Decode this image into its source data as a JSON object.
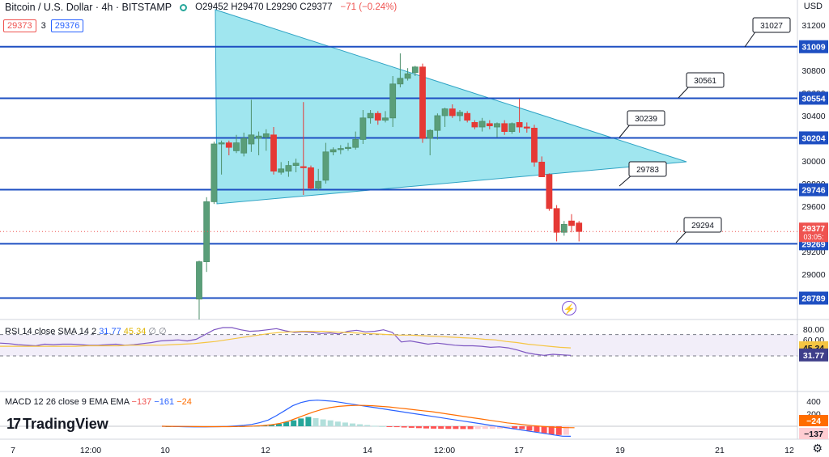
{
  "header": {
    "title": "Bitcoin / U.S. Dollar · 4h · BITSTAMP",
    "ohlc": "O29452 H29470 L29290 C29377",
    "change": "−71 (−0.24%)"
  },
  "quote": {
    "bid": "29373",
    "spread": "3",
    "ask": "29376"
  },
  "axis_unit": "USD",
  "logo_text": "TradingView",
  "countdown": "03:05:",
  "rsi_label": {
    "name": "RSI 14 close SMA 14 2",
    "v1": "31.77",
    "v2": "45.34",
    "v3": "∅ ∅"
  },
  "macd_label": {
    "name": "MACD 12 26 close 9 EMA EMA",
    "v1": "−137",
    "v2": "−161",
    "v3": "−24"
  },
  "colors": {
    "up": "#4e8f6b",
    "down": "#e53935",
    "level": "#1e4fc2",
    "triangle": "#80deea",
    "triangle_edge": "#2fa3c4"
  },
  "chart_data": [
    {
      "type": "candlestick",
      "x_tick_labels": [
        "7",
        "12:00",
        "10",
        "12",
        "12:00",
        "14",
        "12:00",
        "17",
        "19",
        "21",
        "12"
      ],
      "y_tick_labels": [
        "31200",
        "31000",
        "30800",
        "30600",
        "30400",
        "30200",
        "30000",
        "29800",
        "29600",
        "29400",
        "29200",
        "29000",
        "28800"
      ],
      "candles": [
        {
          "o": 28780,
          "h": 29120,
          "l": 28600,
          "c": 29110
        },
        {
          "o": 29110,
          "h": 29680,
          "l": 29020,
          "c": 29640
        },
        {
          "o": 29640,
          "h": 30170,
          "l": 29620,
          "c": 30150
        },
        {
          "o": 30150,
          "h": 30180,
          "l": 29880,
          "c": 30160
        },
        {
          "o": 30160,
          "h": 30180,
          "l": 30050,
          "c": 30120
        },
        {
          "o": 30090,
          "h": 30230,
          "l": 30070,
          "c": 30160
        },
        {
          "o": 30070,
          "h": 30250,
          "l": 30040,
          "c": 30200
        },
        {
          "o": 30150,
          "h": 30540,
          "l": 30080,
          "c": 30230
        },
        {
          "o": 30200,
          "h": 30260,
          "l": 30050,
          "c": 30220
        },
        {
          "o": 30210,
          "h": 30280,
          "l": 30090,
          "c": 30240
        },
        {
          "o": 30230,
          "h": 30300,
          "l": 29880,
          "c": 29910
        },
        {
          "o": 29900,
          "h": 29990,
          "l": 29880,
          "c": 29930
        },
        {
          "o": 29910,
          "h": 30000,
          "l": 29860,
          "c": 29960
        },
        {
          "o": 29960,
          "h": 30020,
          "l": 29900,
          "c": 29980
        },
        {
          "o": 29950,
          "h": 30520,
          "l": 29700,
          "c": 29940
        },
        {
          "o": 29940,
          "h": 29960,
          "l": 29750,
          "c": 29760
        },
        {
          "o": 29760,
          "h": 29930,
          "l": 29740,
          "c": 29820
        },
        {
          "o": 29830,
          "h": 30160,
          "l": 29800,
          "c": 30080
        },
        {
          "o": 30080,
          "h": 30120,
          "l": 30050,
          "c": 30100
        },
        {
          "o": 30100,
          "h": 30140,
          "l": 30060,
          "c": 30110
        },
        {
          "o": 30110,
          "h": 30160,
          "l": 30090,
          "c": 30120
        },
        {
          "o": 30120,
          "h": 30260,
          "l": 30100,
          "c": 30190
        },
        {
          "o": 30190,
          "h": 30450,
          "l": 30150,
          "c": 30380
        },
        {
          "o": 30380,
          "h": 30450,
          "l": 30330,
          "c": 30420
        },
        {
          "o": 30420,
          "h": 30440,
          "l": 30320,
          "c": 30360
        },
        {
          "o": 30360,
          "h": 30440,
          "l": 30340,
          "c": 30380
        },
        {
          "o": 30380,
          "h": 30750,
          "l": 30300,
          "c": 30680
        },
        {
          "o": 30680,
          "h": 30950,
          "l": 30650,
          "c": 30730
        },
        {
          "o": 30730,
          "h": 30820,
          "l": 30710,
          "c": 30770
        },
        {
          "o": 30780,
          "h": 30840,
          "l": 30750,
          "c": 30830
        },
        {
          "o": 30830,
          "h": 30860,
          "l": 30160,
          "c": 30200
        },
        {
          "o": 30200,
          "h": 30280,
          "l": 30050,
          "c": 30270
        },
        {
          "o": 30270,
          "h": 30420,
          "l": 30190,
          "c": 30400
        },
        {
          "o": 30400,
          "h": 30470,
          "l": 30300,
          "c": 30460
        },
        {
          "o": 30460,
          "h": 30500,
          "l": 30380,
          "c": 30400
        },
        {
          "o": 30400,
          "h": 30450,
          "l": 30350,
          "c": 30430
        },
        {
          "o": 30420,
          "h": 30440,
          "l": 30340,
          "c": 30360
        },
        {
          "o": 30340,
          "h": 30360,
          "l": 30280,
          "c": 30300
        },
        {
          "o": 30300,
          "h": 30380,
          "l": 30260,
          "c": 30350
        },
        {
          "o": 30330,
          "h": 30360,
          "l": 30280,
          "c": 30310
        },
        {
          "o": 30300,
          "h": 30340,
          "l": 30210,
          "c": 30330
        },
        {
          "o": 30330,
          "h": 30360,
          "l": 30230,
          "c": 30260
        },
        {
          "o": 30260,
          "h": 30340,
          "l": 30240,
          "c": 30330
        },
        {
          "o": 30340,
          "h": 30550,
          "l": 30250,
          "c": 30300
        },
        {
          "o": 30300,
          "h": 30340,
          "l": 30250,
          "c": 30290
        },
        {
          "o": 30290,
          "h": 30320,
          "l": 29950,
          "c": 29990
        },
        {
          "o": 29990,
          "h": 30040,
          "l": 29860,
          "c": 29860
        },
        {
          "o": 29880,
          "h": 29890,
          "l": 29560,
          "c": 29580
        },
        {
          "o": 29580,
          "h": 29610,
          "l": 29290,
          "c": 29370
        },
        {
          "o": 29370,
          "h": 29470,
          "l": 29340,
          "c": 29440
        },
        {
          "o": 29470,
          "h": 29530,
          "l": 29370,
          "c": 29430
        },
        {
          "o": 29452,
          "h": 29470,
          "l": 29290,
          "c": 29377
        }
      ],
      "levels": [
        31009,
        30554,
        30204,
        29746,
        29269,
        28789
      ],
      "annotations": [
        "31027",
        "30561",
        "30239",
        "29783",
        "29294"
      ],
      "last_price": 29377
    },
    {
      "type": "line",
      "title": "RSI 14 close SMA 14 2",
      "y_tick_labels": [
        "80.00",
        "60.00",
        "40.00"
      ],
      "ylim": [
        20,
        90
      ],
      "band": [
        30,
        70
      ],
      "series": [
        {
          "values": [
            54,
            53,
            51,
            50,
            49,
            52,
            51,
            52,
            52,
            51,
            50,
            50,
            51,
            52,
            50,
            51,
            53,
            55,
            58,
            59,
            60,
            58,
            61,
            70,
            79,
            83,
            83,
            79,
            76,
            77,
            79,
            81,
            77,
            74,
            75,
            74,
            72,
            73,
            71,
            76,
            78,
            75,
            76,
            79,
            74,
            56,
            58,
            55,
            52,
            54,
            52,
            50,
            49,
            49,
            48,
            46,
            47,
            45,
            41,
            36,
            33,
            31,
            33,
            32,
            31
          ]
        },
        {
          "values": [
            48,
            48,
            48,
            48,
            48,
            48,
            48,
            48,
            49,
            49,
            49,
            49,
            50,
            50,
            50,
            50,
            51,
            52,
            53,
            55,
            57,
            60,
            63,
            66,
            69,
            72,
            74,
            75,
            76,
            76,
            76,
            75,
            74,
            73,
            72,
            71,
            70,
            69,
            69,
            68,
            67,
            66,
            65,
            64,
            63,
            61,
            60,
            57,
            55,
            52,
            50,
            48,
            46,
            45
          ]
        }
      ],
      "value_labels": [
        "45.34",
        "31.77"
      ]
    },
    {
      "type": "bar",
      "title": "MACD 12 26 close 9 EMA EMA",
      "ylim": [
        -240,
        500
      ],
      "y_tick_labels": [
        "400",
        "200"
      ],
      "histogram": [
        0,
        -5,
        -8,
        -10,
        -9,
        -7,
        -5,
        -3,
        -1,
        1,
        3,
        6,
        10,
        15,
        22,
        40,
        70,
        95,
        125,
        150,
        130,
        110,
        95,
        75,
        60,
        45,
        32,
        20,
        8,
        2,
        -8,
        -14,
        -20,
        -25,
        -30,
        -35,
        -38,
        -40,
        -42,
        -43,
        -44,
        -45,
        -44,
        -42,
        -40,
        -38,
        -36,
        -36,
        -45,
        -70,
        -90,
        -110,
        -130,
        -140,
        -137
      ],
      "series": [
        {
          "values": [
            0,
            -2,
            -5,
            -8,
            -10,
            -10,
            -9,
            -6,
            -2,
            5,
            15,
            30,
            60,
            100,
            170,
            250,
            330,
            380,
            410,
            420,
            410,
            400,
            380,
            360,
            340,
            320,
            300,
            280,
            260,
            240,
            220,
            200,
            180,
            160,
            140,
            120,
            100,
            80,
            60,
            40,
            20,
            0,
            -20,
            -40,
            -60,
            -80,
            -100,
            -120,
            -140,
            -160,
            -161
          ]
        },
        {
          "values": [
            0,
            -1,
            -2,
            -3,
            -5,
            -6,
            -7,
            -7,
            -6,
            -4,
            -1,
            4,
            12,
            25,
            45,
            80,
            130,
            180,
            230,
            270,
            300,
            320,
            330,
            335,
            335,
            330,
            320,
            310,
            295,
            280,
            265,
            250,
            235,
            215,
            195,
            175,
            155,
            135,
            115,
            95,
            75,
            55,
            40,
            25,
            10,
            0,
            -10,
            -18,
            -22,
            -24
          ]
        }
      ],
      "value_labels": [
        "−24",
        "−137"
      ]
    }
  ]
}
